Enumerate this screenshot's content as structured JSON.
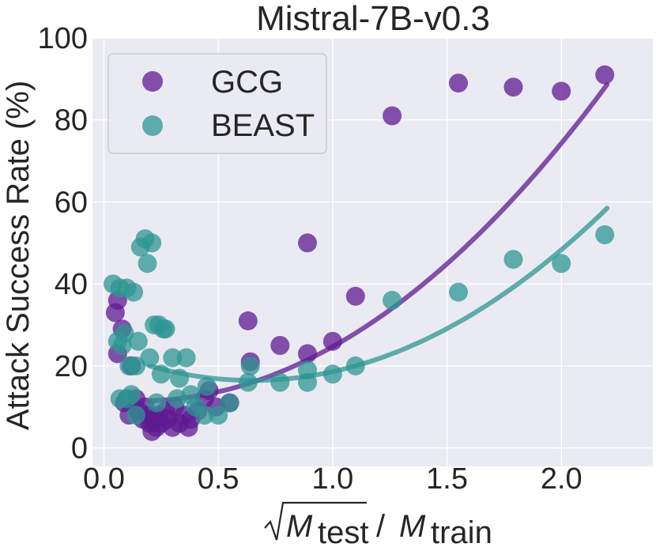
{
  "chart_data": {
    "type": "scatter",
    "title": "Mistral-7B-v0.3",
    "xlabel": "√M_test / M_train",
    "xlabel_parts": {
      "M": "M",
      "test": "test",
      "slash": "/",
      "train": "train"
    },
    "ylabel": "Attack Success Rate (%)",
    "xlim": [
      -0.05,
      2.4
    ],
    "ylim": [
      -4.5,
      100
    ],
    "xticks": [
      0.0,
      0.5,
      1.0,
      1.5,
      2.0
    ],
    "xtick_labels": [
      "0.0",
      "0.5",
      "1.0",
      "1.5",
      "2.0"
    ],
    "yticks": [
      0,
      20,
      40,
      60,
      80,
      100
    ],
    "ytick_labels": [
      "0",
      "20",
      "40",
      "60",
      "80",
      "100"
    ],
    "grid": true,
    "legend_position": "top-left",
    "series": [
      {
        "name": "GCG",
        "color": "#5f1a93",
        "points": [
          [
            0.05,
            33
          ],
          [
            0.06,
            36
          ],
          [
            0.06,
            23
          ],
          [
            0.08,
            29
          ],
          [
            0.09,
            11
          ],
          [
            0.1,
            12
          ],
          [
            0.11,
            8
          ],
          [
            0.12,
            20
          ],
          [
            0.14,
            12
          ],
          [
            0.15,
            9
          ],
          [
            0.17,
            7
          ],
          [
            0.18,
            10
          ],
          [
            0.19,
            8
          ],
          [
            0.2,
            6
          ],
          [
            0.21,
            4
          ],
          [
            0.22,
            7
          ],
          [
            0.23,
            5
          ],
          [
            0.24,
            8
          ],
          [
            0.25,
            6
          ],
          [
            0.27,
            9
          ],
          [
            0.28,
            7
          ],
          [
            0.3,
            5
          ],
          [
            0.31,
            10
          ],
          [
            0.33,
            6
          ],
          [
            0.35,
            8
          ],
          [
            0.37,
            5
          ],
          [
            0.38,
            7
          ],
          [
            0.41,
            9
          ],
          [
            0.44,
            12
          ],
          [
            0.46,
            14
          ],
          [
            0.49,
            10
          ],
          [
            0.55,
            11
          ],
          [
            0.63,
            31
          ],
          [
            0.64,
            21
          ],
          [
            0.77,
            25
          ],
          [
            0.89,
            50
          ],
          [
            0.89,
            23
          ],
          [
            1.0,
            26
          ],
          [
            1.1,
            37
          ],
          [
            1.26,
            81
          ],
          [
            1.55,
            89
          ],
          [
            1.79,
            88
          ],
          [
            2.0,
            87
          ],
          [
            2.19,
            91
          ]
        ],
        "fit": {
          "a": 18.41,
          "b": -5.62,
          "c": 11.9,
          "x_range": [
            0.2,
            2.2
          ]
        }
      },
      {
        "name": "BEAST",
        "color": "#2e9692",
        "points": [
          [
            0.04,
            40
          ],
          [
            0.06,
            26
          ],
          [
            0.07,
            39
          ],
          [
            0.08,
            25
          ],
          [
            0.09,
            28
          ],
          [
            0.1,
            39
          ],
          [
            0.11,
            20
          ],
          [
            0.12,
            13
          ],
          [
            0.13,
            38
          ],
          [
            0.14,
            20
          ],
          [
            0.15,
            26
          ],
          [
            0.16,
            49
          ],
          [
            0.18,
            51
          ],
          [
            0.19,
            45
          ],
          [
            0.21,
            50
          ],
          [
            0.2,
            22
          ],
          [
            0.22,
            30
          ],
          [
            0.23,
            11
          ],
          [
            0.24,
            30
          ],
          [
            0.26,
            29
          ],
          [
            0.25,
            18
          ],
          [
            0.27,
            29
          ],
          [
            0.3,
            22
          ],
          [
            0.32,
            12
          ],
          [
            0.33,
            17
          ],
          [
            0.36,
            22
          ],
          [
            0.38,
            13
          ],
          [
            0.4,
            10
          ],
          [
            0.44,
            8
          ],
          [
            0.45,
            15
          ],
          [
            0.5,
            8
          ],
          [
            0.55,
            11
          ],
          [
            0.07,
            12
          ],
          [
            0.1,
            12
          ],
          [
            0.14,
            8
          ],
          [
            0.63,
            16
          ],
          [
            0.64,
            20
          ],
          [
            0.77,
            16
          ],
          [
            0.89,
            19
          ],
          [
            0.89,
            16
          ],
          [
            1.0,
            18
          ],
          [
            1.1,
            20
          ],
          [
            1.26,
            36
          ],
          [
            1.55,
            38
          ],
          [
            1.79,
            46
          ],
          [
            2.0,
            45
          ],
          [
            2.19,
            52
          ]
        ],
        "fit": {
          "a": 17.48,
          "b": -22.71,
          "c": 23.83,
          "x_range": [
            0.2,
            2.2
          ]
        }
      }
    ]
  }
}
